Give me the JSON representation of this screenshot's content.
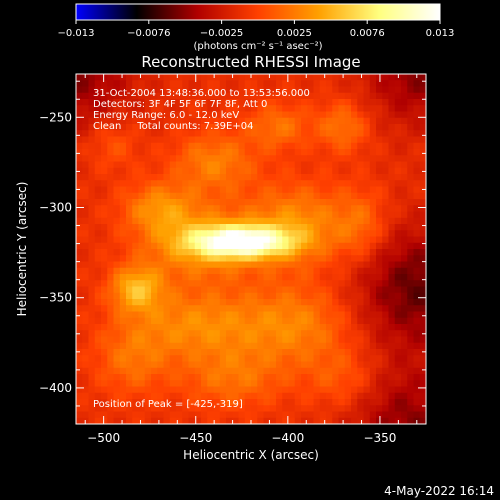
{
  "chart_data": {
    "type": "heatmap",
    "title": "Reconstructed RHESSI Image",
    "xlabel": "Heliocentric X (arcsec)",
    "ylabel": "Heliocentric Y (arcsec)",
    "xlim": [
      -515,
      -325
    ],
    "ylim": [
      -420,
      -226
    ],
    "x_ticks": [
      -500,
      -450,
      -400,
      -350
    ],
    "y_ticks": [
      -400,
      -350,
      -300,
      -250
    ],
    "tick_labels_x": [
      "−500",
      "−450",
      "−400",
      "−350"
    ],
    "tick_labels_y": [
      "−400",
      "−350",
      "−300",
      "−250"
    ],
    "colorbar": {
      "range": [
        -0.013,
        0.013
      ],
      "tick_labels": [
        "−0.013",
        "−0.0076",
        "−0.0025",
        "0.0025",
        "0.0076",
        "0.013"
      ],
      "units": "(photons cm⁻² s⁻¹ asec⁻²)",
      "colors": [
        "#0000ff",
        "#000000",
        "#b00000",
        "#ff4000",
        "#ffa000",
        "#ffff80",
        "#ffffff"
      ]
    },
    "annotations": [
      "31-Oct-2004 13:48:36.000 to 13:53:56.000",
      "Detectors: 3F 4F 5F 6F 7F 8F, Att 0",
      "Energy Range: 6.0 - 12.0 keV",
      "Clean     Total counts: 7.39E+04"
    ],
    "peak_label": "Position of Peak = [-425,-319]",
    "peak": {
      "x": -425,
      "y": -319,
      "value": 0.013
    },
    "sources": [
      {
        "x": -425,
        "y": -319,
        "sx": 18,
        "sy": 6,
        "value": 0.013
      },
      {
        "x": -448,
        "y": -320,
        "sx": 22,
        "sy": 14,
        "value": 0.0052
      },
      {
        "x": -395,
        "y": -310,
        "sx": 20,
        "sy": 16,
        "value": 0.0048
      },
      {
        "x": -482,
        "y": -345,
        "sx": 10,
        "sy": 9,
        "value": 0.0062
      },
      {
        "x": -470,
        "y": -300,
        "sx": 14,
        "sy": 10,
        "value": 0.0042
      },
      {
        "x": -440,
        "y": -275,
        "sx": 16,
        "sy": 12,
        "value": 0.004
      },
      {
        "x": -405,
        "y": -255,
        "sx": 12,
        "sy": 9,
        "value": 0.0034
      },
      {
        "x": -370,
        "y": -255,
        "sx": 10,
        "sy": 10,
        "value": 0.0036
      },
      {
        "x": -360,
        "y": -310,
        "sx": 10,
        "sy": 14,
        "value": 0.003
      },
      {
        "x": -450,
        "y": -365,
        "sx": 26,
        "sy": 14,
        "value": 0.0044
      },
      {
        "x": -395,
        "y": -365,
        "sx": 22,
        "sy": 16,
        "value": 0.004
      },
      {
        "x": -430,
        "y": -395,
        "sx": 20,
        "sy": 12,
        "value": 0.0032
      },
      {
        "x": -485,
        "y": -385,
        "sx": 14,
        "sy": 14,
        "value": 0.003
      },
      {
        "x": -370,
        "y": -395,
        "sx": 14,
        "sy": 12,
        "value": 0.0024
      },
      {
        "x": -495,
        "y": -265,
        "sx": 10,
        "sy": 10,
        "value": 0.0022
      }
    ],
    "background_level": -0.0012,
    "negative_regions": [
      {
        "x": -515,
        "y": -226,
        "s": 22,
        "value": -0.004
      },
      {
        "x": -330,
        "y": -226,
        "s": 20,
        "value": -0.004
      },
      {
        "x": -330,
        "y": -345,
        "s": 24,
        "value": -0.005
      },
      {
        "x": -335,
        "y": -420,
        "s": 22,
        "value": -0.004
      }
    ]
  },
  "footer": {
    "date": "4-May-2022 16:14"
  }
}
